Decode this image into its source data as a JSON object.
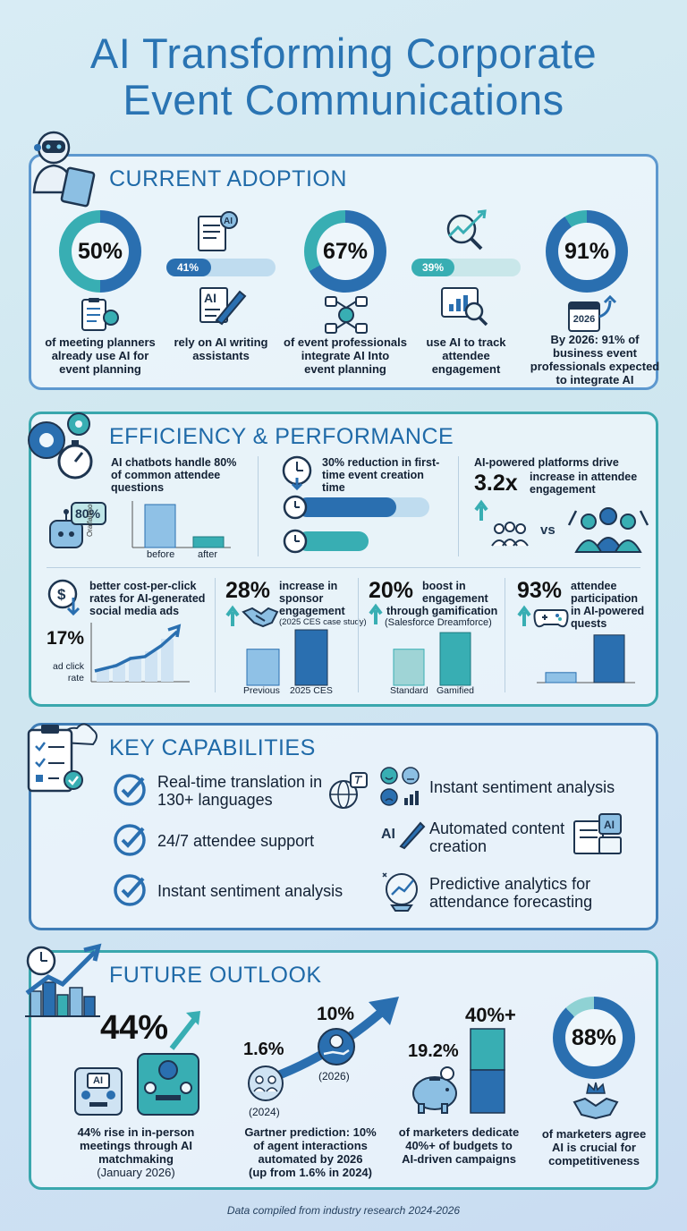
{
  "title": {
    "line1": "AI Transforming Corporate",
    "line2": "Event Communications"
  },
  "adoption": {
    "heading": "CURRENT ADOPTION",
    "stats": [
      {
        "value": "50%",
        "pct": 50,
        "caption1": "of meeting planners",
        "caption2": "already use AI for",
        "caption3": "event planning"
      },
      {
        "value": "41%",
        "pct": 41,
        "caption1": "rely on AI writing",
        "caption2": "assistants"
      },
      {
        "value": "67%",
        "pct": 67,
        "caption1": "of event professionals",
        "caption2": "integrate AI Into",
        "caption3": "event planning"
      },
      {
        "value": "39%",
        "pct": 39,
        "caption1": "use AI to track",
        "caption2": "attendee",
        "caption3": "engagement"
      },
      {
        "value": "91%",
        "pct": 91,
        "caption1": "By 2026: 91% of",
        "caption2": "business event",
        "caption3": "professionals expected",
        "caption4": "to integrate AI"
      }
    ],
    "calendar_year": "2026"
  },
  "efficiency": {
    "heading": "EFFICIENCY & PERFORMANCE",
    "chatbots": {
      "line1": "AI chatbots handle 80%",
      "line2": "of common attendee",
      "line3": "questions",
      "badge": "80%",
      "axis": "Oralfalimo",
      "bar_before": "before",
      "bar_after": "after",
      "before_value": 1.0,
      "after_value": 0.25
    },
    "creation": {
      "line1": "30% reduction in first-",
      "line2": "time event creation",
      "line3": "time",
      "bar1_fill": 0.75,
      "bar2_fill": 0.55
    },
    "engagement": {
      "line1": "AI-powered platforms drive",
      "value": "3.2x",
      "line2": "increase in attendee",
      "line3": "engagement",
      "vs": "vs"
    },
    "cpc": {
      "line1": "better cost-per-click",
      "line2": "rates for AI-generated",
      "line3": "social media ads",
      "value": "17%",
      "axis1": "ad click",
      "axis2": "rate"
    },
    "sponsor": {
      "value": "28%",
      "line1": "increase in",
      "line2": "sponsor",
      "line3": "engagement",
      "note": "(2025 CES case study)",
      "label_a": "Previous",
      "label_b": "2025 CES",
      "a_value": 0.65,
      "b_value": 1.0
    },
    "gamification": {
      "value": "20%",
      "line1": "boost in",
      "line2": "engagement",
      "line3": "through gamification",
      "note": "(Salesforce Dreamforce)",
      "label_a": "Standard",
      "label_b": "Gamified",
      "a_value": 0.65,
      "b_value": 0.95
    },
    "quests": {
      "value": "93%",
      "line1": "attendee",
      "line2": "participation",
      "line3": "in AI-powered",
      "line4": "quests",
      "a_value": 0.2,
      "b_value": 0.95
    }
  },
  "capabilities": {
    "heading": "KEY CAPABILITIES",
    "left": [
      {
        "line1": "Real-time translation in",
        "line2": "130+ languages"
      },
      {
        "line1": "24/7 attendee support"
      },
      {
        "line1": "Instant sentiment analysis"
      }
    ],
    "right": [
      {
        "line1": "Instant sentiment analysis"
      },
      {
        "line1": "Automated content",
        "line2": "creation",
        "icon_label": "AI"
      },
      {
        "line1": "Predictive analytics for",
        "line2": "attendance forecasting"
      }
    ]
  },
  "future": {
    "heading": "FUTURE OUTLOOK",
    "meetings": {
      "value": "44%",
      "line1": "44% rise in in-person",
      "line2": "meetings through AI",
      "line3": "matchmaking",
      "line4": "(January 2026)",
      "ai_label": "AI"
    },
    "gartner": {
      "start_value": "1.6%",
      "start_year": "(2024)",
      "end_value": "10%",
      "end_year": "(2026)",
      "line1": "Gartner prediction: 10%",
      "line2": "of agent interactions",
      "line3": "automated by 2026",
      "line4": "(up from 1.6% in 2024)"
    },
    "budgets": {
      "value_low": "19.2%",
      "value_high": "40%+",
      "line1": "of marketers dedicate",
      "line2": "40%+ of budgets to",
      "line3": "AI-driven campaigns"
    },
    "competitive": {
      "value": "88%",
      "pct": 88,
      "line1": "of marketers agree",
      "line2": "AI is crucial for",
      "line3": "competitiveness"
    }
  },
  "footer": "Data compiled from industry research 2024-2026",
  "colors": {
    "dark_blue": "#2a6fb0",
    "teal": "#38aeb3",
    "light_blue": "#8fc1e6",
    "title_blue": "#2a74b3"
  }
}
